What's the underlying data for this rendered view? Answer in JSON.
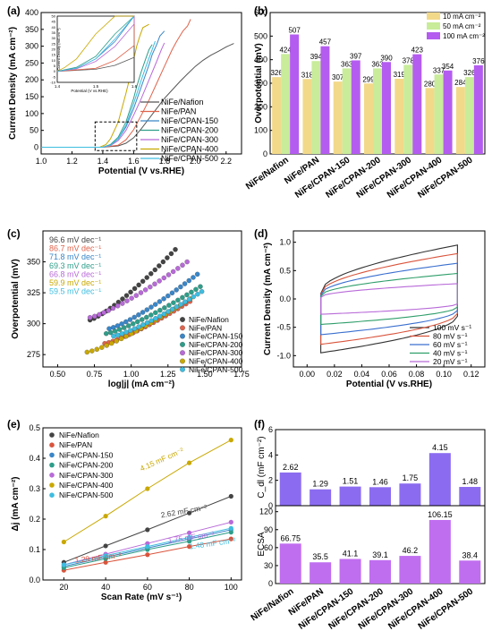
{
  "figure": {
    "panel_labels": [
      "(a)",
      "(b)",
      "(c)",
      "(d)",
      "(e)",
      "(f)"
    ]
  },
  "chart_data": [
    {
      "panel": "(a)",
      "type": "line",
      "xlabel": "Potential (V vs.RHE)",
      "ylabel": "Current Density (mA cm⁻²)",
      "xlim": [
        1.0,
        2.3
      ],
      "ylim": [
        -20,
        400
      ],
      "xticks": [
        "1.0",
        "1.2",
        "1.4",
        "1.6",
        "1.8",
        "2.0",
        "2.2"
      ],
      "yticks": [
        "0",
        "50",
        "100",
        "150",
        "200",
        "250",
        "300",
        "350",
        "400"
      ],
      "series": [
        {
          "name": "NiFe/Nafion",
          "color": "#555555",
          "x": [
            1.0,
            1.4,
            1.5,
            1.55,
            1.6,
            1.65,
            1.7,
            1.75,
            1.8,
            1.85,
            1.9,
            1.95,
            2.0,
            2.05,
            2.1,
            2.15,
            2.2,
            2.25
          ],
          "y": [
            0,
            0,
            4,
            12,
            28,
            55,
            85,
            115,
            145,
            170,
            195,
            218,
            240,
            258,
            273,
            285,
            298,
            308
          ]
        },
        {
          "name": "NiFe/PAN",
          "color": "#e0634c",
          "x": [
            1.0,
            1.4,
            1.5,
            1.55,
            1.6,
            1.65,
            1.7,
            1.75,
            1.8,
            1.85,
            1.88,
            1.9,
            1.92,
            1.95,
            1.97
          ],
          "y": [
            0,
            0,
            6,
            22,
            52,
            95,
            140,
            190,
            240,
            290,
            315,
            330,
            345,
            360,
            380
          ]
        },
        {
          "name": "NiFe/CPAN-150",
          "color": "#3a86c8",
          "x": [
            1.0,
            1.4,
            1.45,
            1.5,
            1.55,
            1.6,
            1.65,
            1.7,
            1.72,
            1.75,
            1.77,
            1.8
          ],
          "y": [
            0,
            0,
            6,
            25,
            60,
            115,
            180,
            245,
            275,
            305,
            330,
            345
          ]
        },
        {
          "name": "NiFe/CPAN-200",
          "color": "#2e9e8a",
          "x": [
            1.0,
            1.4,
            1.45,
            1.5,
            1.55,
            1.6,
            1.62,
            1.65,
            1.68,
            1.7,
            1.72
          ],
          "y": [
            0,
            0,
            8,
            30,
            75,
            145,
            180,
            225,
            265,
            290,
            305
          ]
        },
        {
          "name": "NiFe/CPAN-300",
          "color": "#b86ad8",
          "x": [
            1.0,
            1.4,
            1.45,
            1.5,
            1.55,
            1.6,
            1.65,
            1.7,
            1.75,
            1.78,
            1.8
          ],
          "y": [
            0,
            0,
            5,
            20,
            50,
            95,
            145,
            200,
            255,
            290,
            310
          ]
        },
        {
          "name": "NiFe/CPAN-400",
          "color": "#c9a800",
          "x": [
            1.0,
            1.38,
            1.42,
            1.45,
            1.5,
            1.55,
            1.58,
            1.6,
            1.62,
            1.64,
            1.66,
            1.7
          ],
          "y": [
            0,
            0,
            8,
            25,
            75,
            160,
            215,
            260,
            300,
            330,
            355,
            365
          ]
        },
        {
          "name": "NiFe/CPAN-500",
          "color": "#3ebde0",
          "x": [
            1.0,
            1.4,
            1.45,
            1.5,
            1.55,
            1.6,
            1.65,
            1.68,
            1.7,
            1.72,
            1.74
          ],
          "y": [
            0,
            0,
            6,
            25,
            65,
            130,
            200,
            240,
            265,
            290,
            315
          ]
        }
      ],
      "inset": {
        "xlabel": "Potential (V vs.RHE)",
        "ylabel": "Current Density (mA cm⁻²)",
        "xlim": [
          1.4,
          1.6
        ],
        "ylim": [
          -10,
          50
        ],
        "xticks": [
          "1.4",
          "1.5",
          "1.6"
        ],
        "yticks": [
          "-10",
          "-5",
          "0",
          "5",
          "10",
          "15",
          "20",
          "25",
          "30",
          "35",
          "40",
          "45",
          "50"
        ]
      }
    },
    {
      "panel": "(b)",
      "type": "bar",
      "ylabel": "Overpotential (mV)",
      "ylim": [
        0,
        600
      ],
      "yticks": [
        "0",
        "100",
        "200",
        "300",
        "400",
        "500",
        "600"
      ],
      "categories": [
        "NiFe/Nafion",
        "NiFe/PAN",
        "NiFe/CPAN-150",
        "NiFe/CPAN-200",
        "NiFe/CPAN-300",
        "NiFe/CPAN-400",
        "NiFe/CPAN-500"
      ],
      "series": [
        {
          "name": "10 mA cm⁻²",
          "color": "#f2d98a",
          "values": [
            326,
            318,
            307,
            299,
            319,
            280,
            284
          ]
        },
        {
          "name": "50 mA cm⁻²",
          "color": "#c8ec9a",
          "values": [
            424,
            394,
            363,
            363,
            378,
            337,
            326
          ]
        },
        {
          "name": "100 mA cm⁻²",
          "color": "#b45cf0",
          "values": [
            507,
            457,
            397,
            390,
            423,
            354,
            376
          ]
        }
      ],
      "legend": "top-right"
    },
    {
      "panel": "(c)",
      "type": "scatter",
      "xlabel": "log|j| (mA cm⁻²)",
      "ylabel": "Overpotential (mV)",
      "xlim": [
        0.4,
        1.75
      ],
      "ylim": [
        265,
        375
      ],
      "xticks": [
        "0.50",
        "0.75",
        "1.00",
        "1.25",
        "1.50",
        "1.75"
      ],
      "yticks": [
        "275",
        "300",
        "325",
        "350"
      ],
      "slopes": [
        "96.6 mV dec⁻¹",
        "86.7 mV dec⁻¹",
        "71.8 mV dec⁻¹",
        "69.3 mV dec⁻¹",
        "66.8 mV dec⁻¹",
        "59.9 mV dec⁻¹",
        "59.5 mV dec⁻¹"
      ],
      "series": [
        {
          "name": "NiFe/Nafion",
          "color": "#444444",
          "x0": 0.72,
          "x1": 1.3,
          "y0": 303,
          "y1": 360
        },
        {
          "name": "NiFe/PAN",
          "color": "#e0634c",
          "x0": 0.82,
          "x1": 1.4,
          "y0": 284,
          "y1": 318
        },
        {
          "name": "NiFe/CPAN-150",
          "color": "#3a86c8",
          "x0": 0.85,
          "x1": 1.45,
          "y0": 296,
          "y1": 340
        },
        {
          "name": "NiFe/CPAN-200",
          "color": "#2e9e8a",
          "x0": 0.83,
          "x1": 1.47,
          "y0": 292,
          "y1": 330
        },
        {
          "name": "NiFe/CPAN-300",
          "color": "#b86ad8",
          "x0": 0.72,
          "x1": 1.38,
          "y0": 305,
          "y1": 350
        },
        {
          "name": "NiFe/CPAN-400",
          "color": "#c9a800",
          "x0": 0.7,
          "x1": 1.4,
          "y0": 277,
          "y1": 320
        },
        {
          "name": "NiFe/CPAN-500",
          "color": "#3ebde0",
          "x0": 0.88,
          "x1": 1.48,
          "y0": 290,
          "y1": 326
        }
      ]
    },
    {
      "panel": "(d)",
      "type": "line",
      "xlabel": "Potential (V vs.RHE)",
      "ylabel": "Current Density (mA cm⁻²)",
      "xlim": [
        -0.01,
        0.13
      ],
      "ylim": [
        -1.2,
        1.2
      ],
      "xticks": [
        "0.00",
        "0.02",
        "0.04",
        "0.06",
        "0.08",
        "0.10",
        "0.12"
      ],
      "yticks": [
        "-1.0",
        "-0.5",
        "0.0",
        "0.5",
        "1.0"
      ],
      "series": [
        {
          "name": "100 mV s⁻¹",
          "color": "#333333",
          "amp": 0.95
        },
        {
          "name": "80 mV s⁻¹",
          "color": "#d9543c",
          "amp": 0.8
        },
        {
          "name": "60 mV s⁻¹",
          "color": "#3a6fcf",
          "amp": 0.63
        },
        {
          "name": "40 mV s⁻¹",
          "color": "#2e9e6a",
          "amp": 0.45
        },
        {
          "name": "20 mV s⁻¹",
          "color": "#b86ad8",
          "amp": 0.27
        }
      ],
      "legend": "bottom-right"
    },
    {
      "panel": "(e)",
      "type": "scatter",
      "xlabel": "Scan Rate (mV s⁻¹)",
      "ylabel": "Δj (mA cm⁻²)",
      "xlim": [
        10,
        105
      ],
      "ylim": [
        0,
        0.5
      ],
      "xticks": [
        "20",
        "40",
        "60",
        "80",
        "100"
      ],
      "yticks": [
        "0.0",
        "0.1",
        "0.2",
        "0.3",
        "0.4",
        "0.5"
      ],
      "x": [
        20,
        40,
        60,
        80,
        100
      ],
      "series": [
        {
          "name": "NiFe/Nafion",
          "color": "#444444",
          "values": [
            0.058,
            0.112,
            0.165,
            0.22,
            0.275
          ]
        },
        {
          "name": "NiFe/PAN",
          "color": "#d9543c",
          "values": [
            0.032,
            0.058,
            0.083,
            0.11,
            0.135
          ]
        },
        {
          "name": "NiFe/CPAN-150",
          "color": "#3a86c8",
          "values": [
            0.045,
            0.075,
            0.105,
            0.135,
            0.165
          ]
        },
        {
          "name": "NiFe/CPAN-200",
          "color": "#2e9e8a",
          "values": [
            0.04,
            0.07,
            0.1,
            0.127,
            0.157
          ]
        },
        {
          "name": "NiFe/CPAN-300",
          "color": "#b86ad8",
          "values": [
            0.05,
            0.085,
            0.12,
            0.155,
            0.19
          ]
        },
        {
          "name": "NiFe/CPAN-400",
          "color": "#c9a800",
          "values": [
            0.125,
            0.21,
            0.3,
            0.385,
            0.46
          ]
        },
        {
          "name": "NiFe/CPAN-500",
          "color": "#3ebde0",
          "values": [
            0.05,
            0.08,
            0.11,
            0.14,
            0.17
          ]
        }
      ],
      "annotations": [
        {
          "text": "4.15 mF cm⁻²",
          "color": "#c9a800"
        },
        {
          "text": "2.62 mF cm⁻²",
          "color": "#444444"
        },
        {
          "text": "1.75 mF cm⁻²",
          "color": "#b86ad8"
        },
        {
          "text": "1.48 mF cm⁻²",
          "color": "#3ebde0"
        },
        {
          "text": "1.29 mF cm⁻²",
          "color": "#d9543c"
        }
      ],
      "legend": "top-left"
    },
    {
      "panel": "(f)",
      "type": "bar",
      "categories": [
        "NiFe/Nafion",
        "NiFe/PAN",
        "NiFe/CPAN-150",
        "NiFe/CPAN-200",
        "NiFe/CPAN-300",
        "NiFe/CPAN-400",
        "NiFe/CPAN-500"
      ],
      "top": {
        "ylabel": "C_dl (mF cm⁻²)",
        "ylim": [
          0,
          6
        ],
        "yticks": [
          "0",
          "2",
          "4",
          "6"
        ],
        "color": "#8b6cf0",
        "values": [
          2.62,
          1.29,
          1.51,
          1.46,
          1.75,
          4.15,
          1.48
        ],
        "labels": [
          "2.62",
          "1.29",
          "1.51",
          "1.46",
          "1.75",
          "4.15",
          "1.48"
        ]
      },
      "bottom": {
        "ylabel": "ECSA",
        "ylim": [
          0,
          130
        ],
        "yticks": [
          "0",
          "30",
          "60",
          "90",
          "120"
        ],
        "color": "#c06ef0",
        "values": [
          66.75,
          35.5,
          41.1,
          39.1,
          46.2,
          106.15,
          38.4
        ],
        "labels": [
          "66.75",
          "35.5",
          "41.1",
          "39.1",
          "46.2",
          "106.15",
          "38.4"
        ]
      }
    }
  ]
}
